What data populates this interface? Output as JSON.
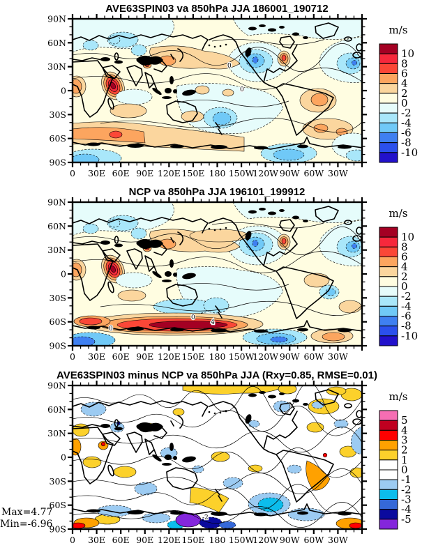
{
  "figure": {
    "background": "#FFFFFF"
  },
  "axes": {
    "lon_labels": [
      "0",
      "30E",
      "60E",
      "90E",
      "120E",
      "150E",
      "180",
      "150W",
      "120W",
      "90W",
      "60W",
      "30W"
    ],
    "lat_labels": [
      "90N",
      "60N",
      "30N",
      "0",
      "30S",
      "60S",
      "90S"
    ]
  },
  "panels": [
    {
      "title": "AVE63SPIN03 va 850hPa JJA 186001_190712",
      "units": "m/s",
      "colorbar": {
        "labels": [
          "10",
          "8",
          "6",
          "4",
          "2",
          "0",
          "-2",
          "-4",
          "-6",
          "-8",
          "-10"
        ],
        "colors": [
          "#A40023",
          "#F6283C",
          "#FB4737",
          "#FCA55F",
          "#FBD69E",
          "#FFFDE1",
          "#E6FCFB",
          "#A9E7FA",
          "#70C9F7",
          "#3F80F1",
          "#2B50EC",
          "#2211CB"
        ]
      },
      "contour_labels": [
        "0",
        "0"
      ]
    },
    {
      "title": "NCP va 850hPa JJA 196101_199912",
      "units": "m/s",
      "colorbar": {
        "labels": [
          "10",
          "8",
          "6",
          "4",
          "2",
          "0",
          "-2",
          "-4",
          "-6",
          "-8",
          "-10"
        ],
        "colors": [
          "#A40023",
          "#F6283C",
          "#FB4737",
          "#FCA55F",
          "#FBD69E",
          "#FFFDE1",
          "#E6FCFB",
          "#A9E7FA",
          "#70C9F7",
          "#3F80F1",
          "#2B50EC",
          "#2211CB"
        ]
      },
      "contour_labels": [
        "0",
        "0",
        "4"
      ]
    },
    {
      "title": "AVE63SPIN03 minus NCP va 850hPa JJA (Rxy=0.85, RMSE=0.01)",
      "units": "m/s",
      "colorbar": {
        "labels": [
          "5",
          "4",
          "3",
          "2",
          "1",
          "0",
          "-1",
          "-2",
          "-3",
          "-4",
          "-5"
        ],
        "colors": [
          "#F56EB3",
          "#C00020",
          "#FE0000",
          "#FFA100",
          "#FCD12B",
          "#FFFFFF",
          "#FFFFFF",
          "#9CCBF2",
          "#0CBDEC",
          "#3568D8",
          "#0A0A9E",
          "#8426DC"
        ]
      },
      "annotations": {
        "max": "Max=4.77",
        "min": "Min=-6.96"
      },
      "contour_labels": [
        "-2"
      ]
    }
  ],
  "chart_data": [
    {
      "type": "heatmap",
      "subtype": "filled_contour_world_map",
      "title": "AVE63SPIN03 va 850hPa JJA 186001_190712",
      "variable": "va 850hPa JJA",
      "period": "186001_190712",
      "units": "m/s",
      "projection": "equirectangular",
      "lon_range_deg_east": [
        0,
        360
      ],
      "lat_range": [
        -90,
        90
      ],
      "contour_interval": 2,
      "levels": [
        -10,
        -8,
        -6,
        -4,
        -2,
        0,
        2,
        4,
        6,
        8,
        10
      ],
      "palette_top_to_bottom": [
        "#A40023",
        "#F6283C",
        "#FB4737",
        "#FCA55F",
        "#FBD69E",
        "#FFFDE1",
        "#E6FCFB",
        "#A9E7FA",
        "#70C9F7",
        "#3F80F1",
        "#2B50EC",
        "#2211CB"
      ],
      "xticks": [
        "0",
        "30E",
        "60E",
        "90E",
        "120E",
        "150E",
        "180",
        "150W",
        "120W",
        "90W",
        "60W",
        "30W"
      ],
      "yticks": [
        "90N",
        "60N",
        "30N",
        "0",
        "30S",
        "60S",
        "90S"
      ],
      "legend_position": "right",
      "grid": false
    },
    {
      "type": "heatmap",
      "subtype": "filled_contour_world_map",
      "title": "NCP va 850hPa JJA 196101_199912",
      "variable": "va 850hPa JJA",
      "period": "196101_199912",
      "units": "m/s",
      "projection": "equirectangular",
      "lon_range_deg_east": [
        0,
        360
      ],
      "lat_range": [
        -90,
        90
      ],
      "contour_interval": 2,
      "levels": [
        -10,
        -8,
        -6,
        -4,
        -2,
        0,
        2,
        4,
        6,
        8,
        10
      ],
      "palette_top_to_bottom": [
        "#A40023",
        "#F6283C",
        "#FB4737",
        "#FCA55F",
        "#FBD69E",
        "#FFFDE1",
        "#E6FCFB",
        "#A9E7FA",
        "#70C9F7",
        "#3F80F1",
        "#2B50EC",
        "#2211CB"
      ],
      "xticks": [
        "0",
        "30E",
        "60E",
        "90E",
        "120E",
        "150E",
        "180",
        "150W",
        "120W",
        "90W",
        "60W",
        "30W"
      ],
      "yticks": [
        "90N",
        "60N",
        "30N",
        "0",
        "30S",
        "60S",
        "90S"
      ],
      "legend_position": "right",
      "grid": false
    },
    {
      "type": "heatmap",
      "subtype": "difference_contour_world_map",
      "title": "AVE63SPIN03 minus NCP va 850hPa JJA (Rxy=0.85, RMSE=0.01)",
      "variable": "va 850hPa JJA difference",
      "units": "m/s",
      "projection": "equirectangular",
      "lon_range_deg_east": [
        0,
        360
      ],
      "lat_range": [
        -90,
        90
      ],
      "contour_interval": 1,
      "levels": [
        -5,
        -4,
        -3,
        -2,
        -1,
        0,
        1,
        2,
        3,
        4,
        5
      ],
      "palette_top_to_bottom": [
        "#F56EB3",
        "#C00020",
        "#FE0000",
        "#FFA100",
        "#FCD12B",
        "#FFFFFF",
        "#FFFFFF",
        "#9CCBF2",
        "#0CBDEC",
        "#3568D8",
        "#0A0A9E",
        "#8426DC"
      ],
      "stats": {
        "Rxy": 0.85,
        "RMSE": 0.01,
        "max": 4.77,
        "min": -6.96
      },
      "xticks": [
        "0",
        "30E",
        "60E",
        "90E",
        "120E",
        "150E",
        "180",
        "150W",
        "120W",
        "90W",
        "60W",
        "30W"
      ],
      "yticks": [
        "90N",
        "60N",
        "30N",
        "0",
        "30S",
        "60S",
        "90S"
      ],
      "legend_position": "right",
      "grid": false
    }
  ]
}
